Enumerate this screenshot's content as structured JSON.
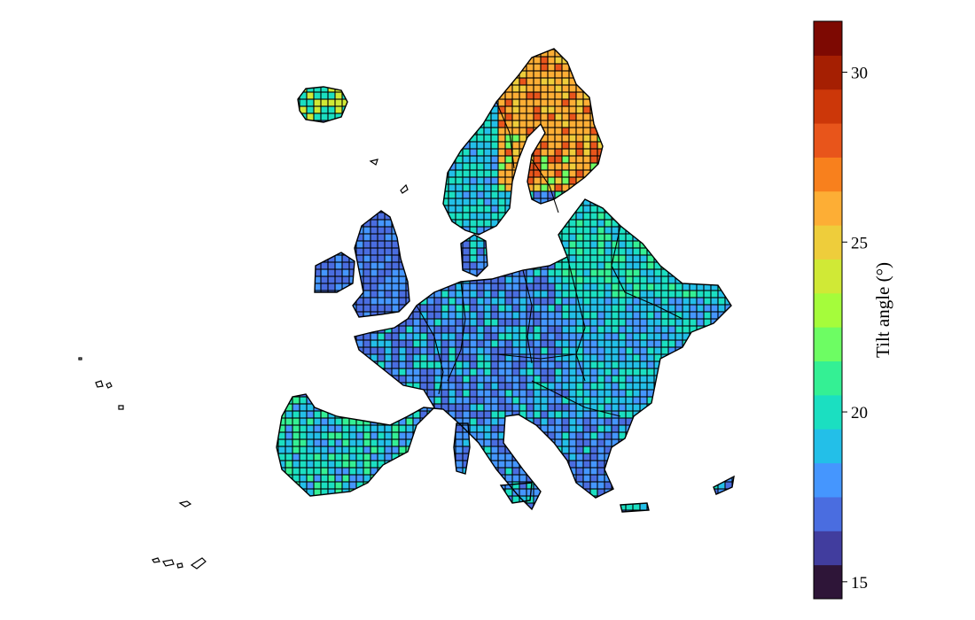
{
  "colorbar": {
    "label": "Tilt angle (°)",
    "min": 14.5,
    "max": 31.5,
    "bin_edges": [
      14.5,
      15.5,
      16.5,
      17.5,
      18.5,
      19.5,
      20.5,
      21.5,
      22.5,
      23.5,
      24.5,
      25.5,
      26.5,
      27.5,
      28.5,
      29.5,
      30.5,
      31.5
    ],
    "colors": [
      "#2e1538",
      "#413d9e",
      "#4a6de0",
      "#4596fe",
      "#23bfe8",
      "#1bdfc1",
      "#34f094",
      "#6dfd63",
      "#a5fc3b",
      "#d0e936",
      "#eecd3b",
      "#fdae35",
      "#f8801d",
      "#e8551b",
      "#cc3709",
      "#a51f02",
      "#7d0902"
    ],
    "ticks": [
      {
        "value": 15,
        "label": "15"
      },
      {
        "value": 20,
        "label": "20"
      },
      {
        "value": 25,
        "label": "25"
      },
      {
        "value": 30,
        "label": "30"
      }
    ]
  },
  "map": {
    "region": "Europe",
    "cell_colors": {
      "default": "#4a6de0",
      "nordic": "#fdae35",
      "nordic_hot": "#e8551b",
      "scandinavia": "#23bfe8",
      "baltic": "#1bdfc1",
      "central": "#4596fe",
      "iberia": "#23bfe8",
      "britain": "#4a6de0",
      "iceland": "#1bdfc1"
    },
    "grid_line_color": "#000000",
    "border_color": "#000000"
  }
}
